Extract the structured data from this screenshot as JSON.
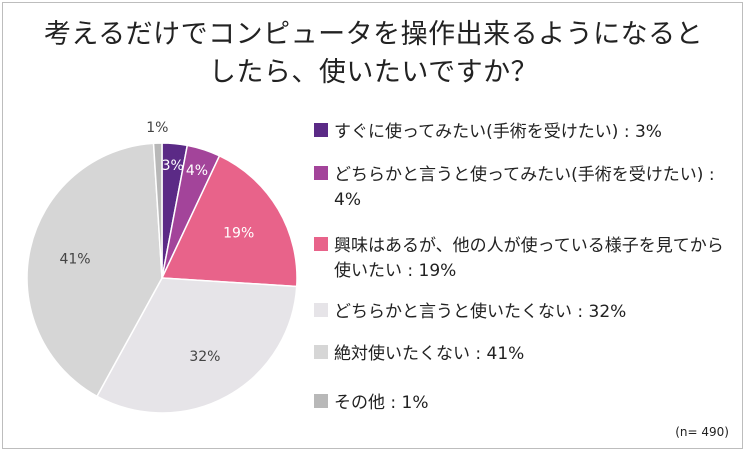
{
  "title": {
    "line1": "考えるだけでコンピュータを操作出来るようになると",
    "line2": "したら、使いたいですか？"
  },
  "sample_size": "(n= 490)",
  "chart_data": {
    "type": "pie",
    "title": "考えるだけでコンピュータを操作出来るようになるとしたら、使いたいですか？",
    "start": "12 o'clock, clockwise",
    "slices": [
      {
        "label": "すぐに使ってみたい(手術を受けたい) : 3%",
        "value": 3,
        "data_label": "3%",
        "color": "#5b2a86",
        "label_color": "#ffffff"
      },
      {
        "label": "どちらかと言うと使ってみたい(手術を受けたい) : 4%",
        "value": 4,
        "data_label": "4%",
        "color": "#a3449a",
        "label_color": "#ffffff"
      },
      {
        "label": "興味はあるが、他の人が使っている様子を見てから使いたい : 19%",
        "value": 19,
        "data_label": "19%",
        "color": "#e8638a",
        "label_color": "#ffffff"
      },
      {
        "label": "どちらかと言うと使いたくない : 32%",
        "value": 32,
        "data_label": "32%",
        "color": "#e6e4e8",
        "label_color": "#444444"
      },
      {
        "label": "絶対使いたくない : 41%",
        "value": 41,
        "data_label": "41%",
        "color": "#d6d6d6",
        "label_color": "#444444"
      },
      {
        "label": "その他 : 1%",
        "value": 1,
        "data_label": "1%",
        "color": "#b8b8b8",
        "label_color": "#444444"
      }
    ]
  }
}
